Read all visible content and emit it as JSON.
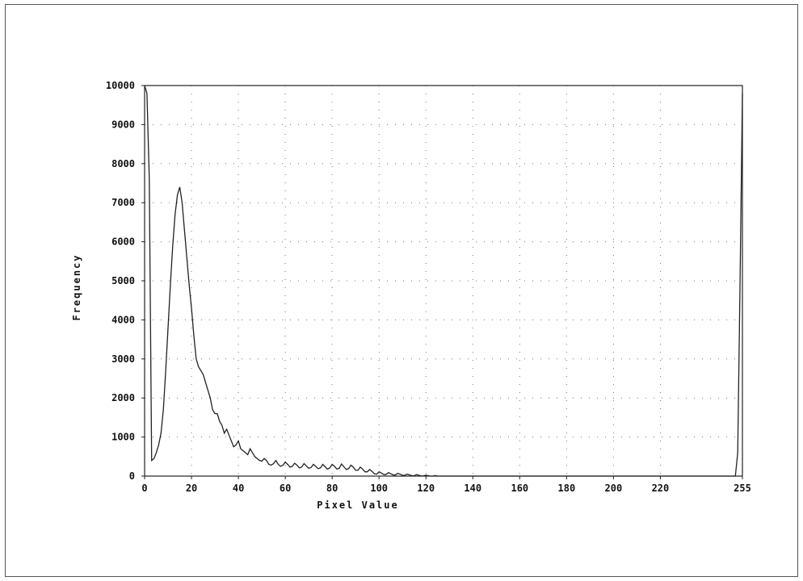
{
  "chart_data": {
    "type": "line",
    "xlabel": "Pixel Value",
    "ylabel": "Frequency",
    "xlim": [
      0,
      255
    ],
    "ylim": [
      0,
      10000
    ],
    "grid": true,
    "x_ticks": [
      0,
      20,
      40,
      60,
      80,
      100,
      120,
      140,
      160,
      180,
      200,
      220,
      255
    ],
    "y_ticks": [
      0,
      1000,
      2000,
      3000,
      4000,
      5000,
      6000,
      7000,
      8000,
      9000,
      10000
    ],
    "colors": {
      "line": "#222222",
      "grid": "#777777",
      "axis": "#222222"
    },
    "series": [
      {
        "x": [
          0,
          1,
          2,
          3,
          4,
          5,
          6,
          7,
          8,
          9,
          10,
          11,
          12,
          13,
          14,
          15,
          16,
          17,
          18,
          19,
          20,
          21,
          22,
          23,
          24,
          25,
          26,
          27,
          28,
          29,
          30,
          31,
          32,
          33,
          34,
          35,
          36,
          37,
          38,
          39,
          40,
          41,
          42,
          43,
          44,
          45,
          46,
          47,
          48,
          49,
          50,
          51,
          52,
          53,
          54,
          55,
          56,
          57,
          58,
          59,
          60,
          61,
          62,
          63,
          64,
          65,
          66,
          67,
          68,
          69,
          70,
          71,
          72,
          73,
          74,
          75,
          76,
          77,
          78,
          79,
          80,
          81,
          82,
          83,
          84,
          85,
          86,
          87,
          88,
          89,
          90,
          91,
          92,
          93,
          94,
          95,
          96,
          97,
          98,
          99,
          100,
          101,
          102,
          103,
          104,
          105,
          106,
          107,
          108,
          109,
          110,
          111,
          112,
          113,
          114,
          115,
          116,
          117,
          118,
          119,
          120,
          121,
          122,
          123,
          124,
          125,
          126,
          127,
          128,
          129,
          130,
          132,
          135,
          140,
          150,
          160,
          180,
          200,
          220,
          240,
          250,
          251,
          252,
          253,
          254,
          255
        ],
        "values": [
          10000,
          9800,
          7600,
          400,
          450,
          600,
          800,
          1100,
          1700,
          2700,
          3800,
          4900,
          5900,
          6700,
          7200,
          7400,
          7000,
          6300,
          5600,
          4900,
          4300,
          3600,
          3000,
          2800,
          2700,
          2600,
          2400,
          2200,
          2000,
          1700,
          1600,
          1600,
          1400,
          1300,
          1100,
          1200,
          1050,
          900,
          750,
          800,
          900,
          700,
          650,
          600,
          550,
          700,
          600,
          500,
          450,
          400,
          380,
          450,
          400,
          300,
          280,
          320,
          400,
          300,
          250,
          280,
          360,
          300,
          230,
          250,
          330,
          280,
          210,
          230,
          320,
          260,
          200,
          220,
          300,
          250,
          190,
          210,
          300,
          240,
          180,
          210,
          300,
          250,
          180,
          200,
          310,
          240,
          170,
          190,
          280,
          230,
          150,
          150,
          230,
          180,
          110,
          110,
          170,
          120,
          60,
          50,
          110,
          80,
          40,
          40,
          90,
          60,
          30,
          30,
          70,
          50,
          20,
          20,
          50,
          30,
          10,
          10,
          40,
          20,
          5,
          5,
          25,
          10,
          0,
          0,
          15,
          0,
          0,
          0,
          0,
          0,
          0,
          0,
          0,
          0,
          0,
          0,
          0,
          0,
          0,
          0,
          0,
          0,
          0,
          600,
          5000,
          9800
        ]
      }
    ]
  }
}
